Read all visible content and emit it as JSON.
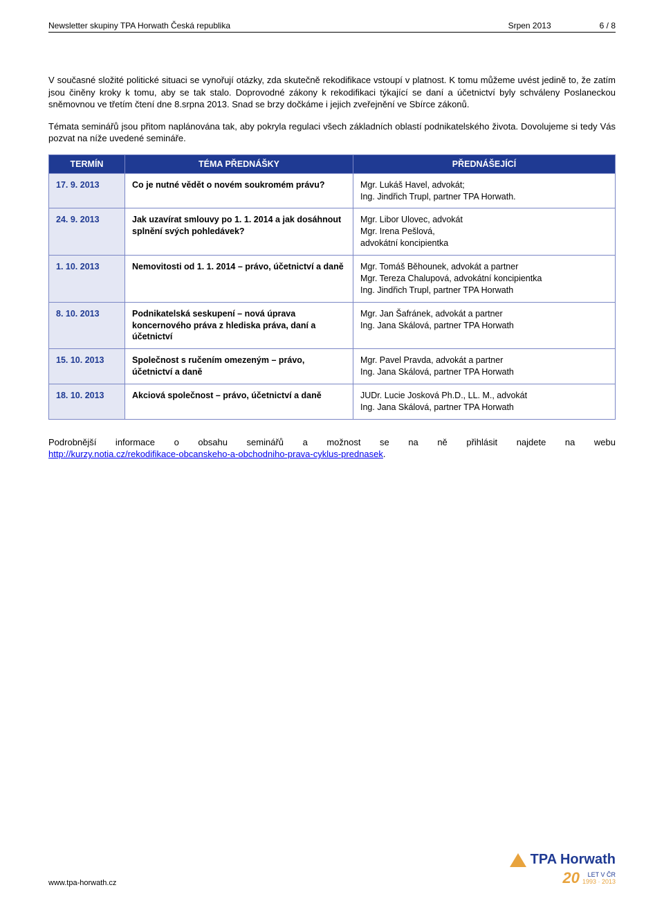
{
  "header": {
    "left": "Newsletter skupiny TPA Horwath Česká republika",
    "center": "Srpen 2013",
    "pager": "6 / 8"
  },
  "body": {
    "p1": "V současné složité politické situaci se vynořují otázky, zda skutečně rekodifikace vstoupí v platnost. K tomu můžeme uvést jedině to, že zatím jsou činěny kroky k tomu, aby se tak stalo. Doprovodné zákony k rekodifikaci týkající se daní a účetnictví byly schváleny Poslaneckou sněmovnou ve třetím čtení dne 8.srpna 2013. Snad se brzy dočkáme i jejich zveřejnění ve Sbírce zákonů.",
    "p2": "Témata seminářů jsou přitom naplánována tak, aby pokryla regulaci všech základních oblastí podnikatelského života. Dovolujeme si tedy Vás pozvat na níže uvedené semináře."
  },
  "table": {
    "headers": {
      "c1": "TERMÍN",
      "c2": "TÉMA PŘEDNÁŠKY",
      "c3": "PŘEDNÁŠEJÍCÍ"
    },
    "rows": [
      {
        "date": "17. 9. 2013",
        "topic": "Co je nutné vědět o novém soukromém právu?",
        "speakers": "Mgr. Lukáš Havel, advokát;\nIng. Jindřich Trupl, partner TPA Horwath."
      },
      {
        "date": "24. 9. 2013",
        "topic": "Jak uzavírat smlouvy po 1. 1. 2014 a jak dosáhnout splnění svých pohledávek?",
        "speakers": "Mgr. Libor Ulovec, advokát\nMgr. Irena Pešlová,\nadvokátní koncipientka"
      },
      {
        "date": "1. 10. 2013",
        "topic": "Nemovitosti od 1. 1. 2014 – právo, účetnictví a daně",
        "speakers": "Mgr. Tomáš Běhounek, advokát a partner\nMgr. Tereza Chalupová, advokátní koncipientka\nIng. Jindřich Trupl, partner TPA Horwath"
      },
      {
        "date": "8. 10. 2013",
        "topic": "Podnikatelská seskupení – nová úprava koncernového práva z hlediska práva, daní a účetnictví",
        "speakers": "Mgr. Jan Šafránek, advokát a partner\nIng. Jana Skálová, partner TPA Horwath"
      },
      {
        "date": "15. 10. 2013",
        "topic": "Společnost s ručením omezeným – právo, účetnictví a daně",
        "speakers": "Mgr. Pavel Pravda, advokát a partner\nIng. Jana Skálová, partner TPA Horwath"
      },
      {
        "date": "18. 10. 2013",
        "topic": "Akciová společnost – právo, účetnictví a daně",
        "speakers": "JUDr. Lucie Josková Ph.D., LL. M., advokát\nIng. Jana Skálová, partner TPA Horwath"
      }
    ]
  },
  "footer_para_prefix": "Podrobnější informace o obsahu seminářů a možnost se na ně přihlásit najdete na webu ",
  "footer_link_text": "http://kurzy.notia.cz/rekodifikace-obcanskeho-a-obchodniho-prava-cyklus-prednasek",
  "footer_para_suffix": ".",
  "pagefooter": {
    "url": "www.tpa-horwath.cz",
    "logo_text": "TPA Horwath",
    "years": "LET V ČR",
    "anniversary": "20",
    "year_range": "1993 · 2013"
  },
  "colors": {
    "header_bg": "#1f3a93",
    "header_fg": "#ffffff",
    "date_bg": "#e4e7f4",
    "date_fg": "#1f3a93",
    "border": "#7a86c5",
    "link": "#0000ee",
    "logo_orange": "#e8a33d"
  }
}
